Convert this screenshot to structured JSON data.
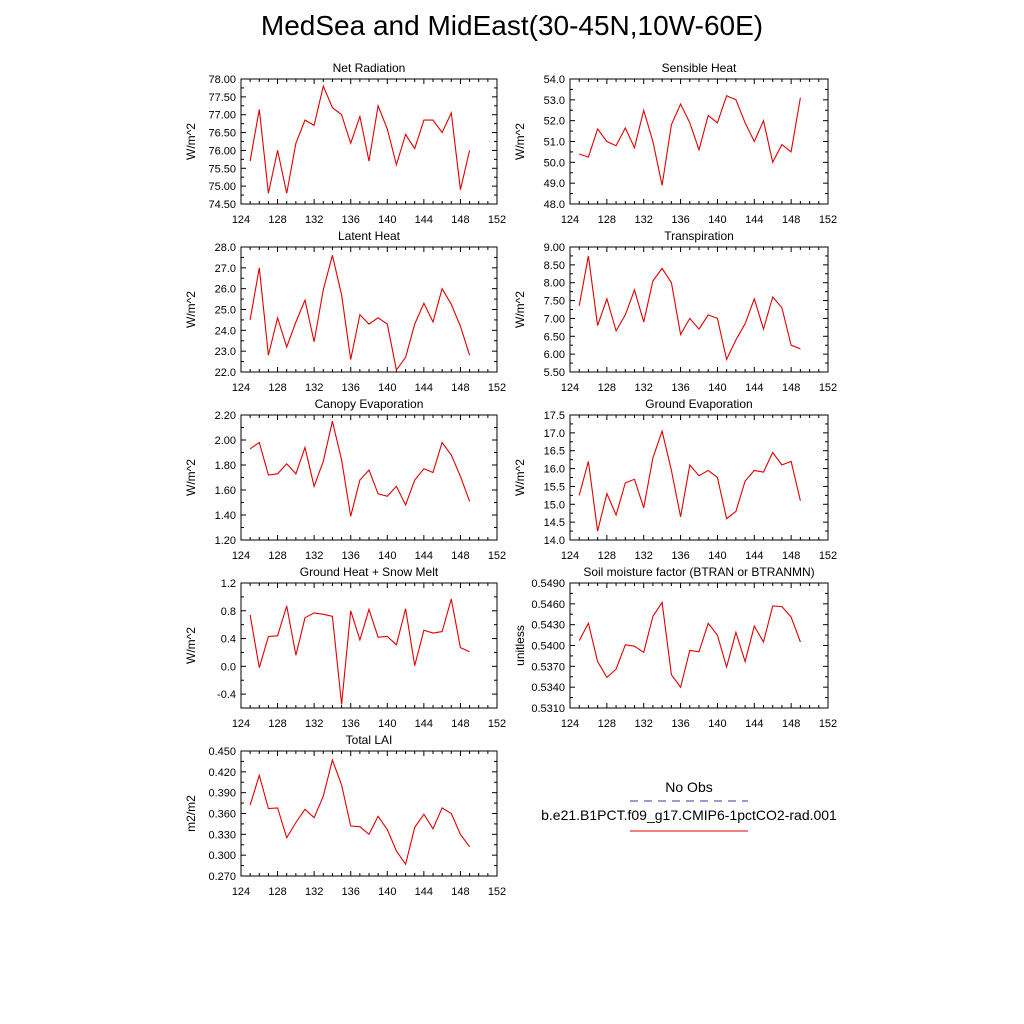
{
  "title": "MedSea and MidEast(30-45N,10W-60E)",
  "legend": {
    "obs_label": "No Obs",
    "obs_color": "#3a3aa0",
    "model_label": "b.e21.B1PCT.f09_g17.CMIP6-1pctCO2-rad.001",
    "model_color": "#e00000"
  },
  "chart_data": [
    {
      "type": "line",
      "title": "Net Radiation",
      "ylabel": "W/m^2",
      "xlim": [
        124,
        152
      ],
      "ylim": [
        74.5,
        78.0
      ],
      "xticks": [
        "124",
        "128",
        "132",
        "136",
        "140",
        "144",
        "148",
        "152"
      ],
      "yticks": [
        "74.50",
        "75.00",
        "75.50",
        "76.00",
        "76.50",
        "77.00",
        "77.50",
        "78.00"
      ],
      "x": [
        125,
        126,
        127,
        128,
        129,
        130,
        131,
        132,
        133,
        134,
        135,
        136,
        137,
        138,
        139,
        140,
        141,
        142,
        143,
        144,
        145,
        146,
        147,
        148,
        149
      ],
      "series": [
        {
          "values": [
            75.7,
            77.15,
            74.8,
            76.0,
            74.8,
            76.2,
            76.85,
            76.7,
            77.8,
            77.2,
            77.0,
            76.2,
            76.95,
            75.7,
            77.25,
            76.6,
            75.6,
            76.45,
            76.05,
            76.85,
            76.85,
            76.5,
            77.05,
            74.9,
            76.0
          ]
        }
      ]
    },
    {
      "type": "line",
      "title": "Sensible Heat",
      "ylabel": "W/m^2",
      "xlim": [
        124,
        152
      ],
      "ylim": [
        48.0,
        54.0
      ],
      "xticks": [
        "124",
        "128",
        "132",
        "136",
        "140",
        "144",
        "148",
        "152"
      ],
      "yticks": [
        "48.0",
        "49.0",
        "50.0",
        "51.0",
        "52.0",
        "53.0",
        "54.0"
      ],
      "x": [
        125,
        126,
        127,
        128,
        129,
        130,
        131,
        132,
        133,
        134,
        135,
        136,
        137,
        138,
        139,
        140,
        141,
        142,
        143,
        144,
        145,
        146,
        147,
        148,
        149
      ],
      "series": [
        {
          "values": [
            50.4,
            50.25,
            51.6,
            51.0,
            50.8,
            51.65,
            50.7,
            52.5,
            51.0,
            48.9,
            51.8,
            52.8,
            51.9,
            50.6,
            52.25,
            51.9,
            53.2,
            53.0,
            51.9,
            51.0,
            52.0,
            50.0,
            50.85,
            50.5,
            53.1
          ]
        }
      ]
    },
    {
      "type": "line",
      "title": "Latent Heat",
      "ylabel": "W/m^2",
      "xlim": [
        124,
        152
      ],
      "ylim": [
        22.0,
        28.0
      ],
      "xticks": [
        "124",
        "128",
        "132",
        "136",
        "140",
        "144",
        "148",
        "152"
      ],
      "yticks": [
        "22.0",
        "23.0",
        "24.0",
        "25.0",
        "26.0",
        "27.0",
        "28.0"
      ],
      "x": [
        125,
        126,
        127,
        128,
        129,
        130,
        131,
        132,
        133,
        134,
        135,
        136,
        137,
        138,
        139,
        140,
        141,
        142,
        143,
        144,
        145,
        146,
        147,
        148,
        149
      ],
      "series": [
        {
          "values": [
            24.5,
            27.0,
            22.8,
            24.6,
            23.2,
            24.4,
            25.45,
            23.45,
            25.95,
            27.6,
            25.7,
            22.6,
            24.75,
            24.3,
            24.6,
            24.3,
            22.1,
            22.7,
            24.3,
            25.3,
            24.4,
            26.0,
            25.25,
            24.2,
            22.8
          ]
        }
      ]
    },
    {
      "type": "line",
      "title": "Transpiration",
      "ylabel": "W/m^2",
      "xlim": [
        124,
        152
      ],
      "ylim": [
        5.5,
        9.0
      ],
      "xticks": [
        "124",
        "128",
        "132",
        "136",
        "140",
        "144",
        "148",
        "152"
      ],
      "yticks": [
        "5.50",
        "6.00",
        "6.50",
        "7.00",
        "7.50",
        "8.00",
        "8.50",
        "9.00"
      ],
      "x": [
        125,
        126,
        127,
        128,
        129,
        130,
        131,
        132,
        133,
        134,
        135,
        136,
        137,
        138,
        139,
        140,
        141,
        142,
        143,
        144,
        145,
        146,
        147,
        148,
        149
      ],
      "series": [
        {
          "values": [
            7.35,
            8.75,
            6.8,
            7.55,
            6.65,
            7.1,
            7.8,
            6.9,
            8.05,
            8.4,
            8.0,
            6.55,
            7.0,
            6.7,
            7.1,
            7.0,
            5.85,
            6.4,
            6.85,
            7.55,
            6.7,
            7.6,
            7.3,
            6.25,
            6.15
          ]
        }
      ]
    },
    {
      "type": "line",
      "title": "Canopy Evaporation",
      "ylabel": "W/m^2",
      "xlim": [
        124,
        152
      ],
      "ylim": [
        1.2,
        2.2
      ],
      "xticks": [
        "124",
        "128",
        "132",
        "136",
        "140",
        "144",
        "148",
        "152"
      ],
      "yticks": [
        "1.20",
        "1.40",
        "1.60",
        "1.80",
        "2.00",
        "2.20"
      ],
      "x": [
        125,
        126,
        127,
        128,
        129,
        130,
        131,
        132,
        133,
        134,
        135,
        136,
        137,
        138,
        139,
        140,
        141,
        142,
        143,
        144,
        145,
        146,
        147,
        148,
        149
      ],
      "series": [
        {
          "values": [
            1.93,
            1.98,
            1.72,
            1.73,
            1.81,
            1.73,
            1.94,
            1.63,
            1.83,
            2.15,
            1.84,
            1.39,
            1.68,
            1.76,
            1.57,
            1.55,
            1.63,
            1.48,
            1.68,
            1.77,
            1.74,
            1.98,
            1.88,
            1.71,
            1.51
          ]
        }
      ]
    },
    {
      "type": "line",
      "title": "Ground Evaporation",
      "ylabel": "W/m^2",
      "xlim": [
        124,
        152
      ],
      "ylim": [
        14.0,
        17.5
      ],
      "xticks": [
        "124",
        "128",
        "132",
        "136",
        "140",
        "144",
        "148",
        "152"
      ],
      "yticks": [
        "14.0",
        "14.5",
        "15.0",
        "15.5",
        "16.0",
        "16.5",
        "17.0",
        "17.5"
      ],
      "x": [
        125,
        126,
        127,
        128,
        129,
        130,
        131,
        132,
        133,
        134,
        135,
        136,
        137,
        138,
        139,
        140,
        141,
        142,
        143,
        144,
        145,
        146,
        147,
        148,
        149
      ],
      "series": [
        {
          "values": [
            15.25,
            16.2,
            14.25,
            15.3,
            14.7,
            15.6,
            15.7,
            14.9,
            16.3,
            17.05,
            15.95,
            14.65,
            16.1,
            15.8,
            15.95,
            15.75,
            14.6,
            14.8,
            15.65,
            15.95,
            15.9,
            16.45,
            16.1,
            16.2,
            15.1
          ]
        }
      ]
    },
    {
      "type": "line",
      "title": "Ground Heat + Snow Melt",
      "ylabel": "W/m^2",
      "xlim": [
        124,
        152
      ],
      "ylim": [
        -0.6,
        1.2
      ],
      "xticks": [
        "124",
        "128",
        "132",
        "136",
        "140",
        "144",
        "148",
        "152"
      ],
      "yticks": [
        "-0.4",
        "0.0",
        "0.4",
        "0.8",
        "1.2"
      ],
      "ytick_values": [
        -0.4,
        0.0,
        0.4,
        0.8,
        1.2
      ],
      "x": [
        125,
        126,
        127,
        128,
        129,
        130,
        131,
        132,
        133,
        134,
        135,
        136,
        137,
        138,
        139,
        140,
        141,
        142,
        143,
        144,
        145,
        146,
        147,
        148,
        149
      ],
      "series": [
        {
          "values": [
            0.74,
            -0.02,
            0.43,
            0.44,
            0.87,
            0.16,
            0.7,
            0.77,
            0.75,
            0.72,
            -0.55,
            0.8,
            0.38,
            0.82,
            0.42,
            0.43,
            0.31,
            0.83,
            0.01,
            0.52,
            0.48,
            0.5,
            0.97,
            0.27,
            0.21
          ]
        }
      ]
    },
    {
      "type": "line",
      "title": "Soil moisture factor (BTRAN or BTRANMN)",
      "ylabel": "unitless",
      "xlim": [
        124,
        152
      ],
      "ylim": [
        0.531,
        0.549
      ],
      "xticks": [
        "124",
        "128",
        "132",
        "136",
        "140",
        "144",
        "148",
        "152"
      ],
      "yticks": [
        "0.5310",
        "0.5340",
        "0.5370",
        "0.5400",
        "0.5430",
        "0.5460",
        "0.5490"
      ],
      "x": [
        125,
        126,
        127,
        128,
        129,
        130,
        131,
        132,
        133,
        134,
        135,
        136,
        137,
        138,
        139,
        140,
        141,
        142,
        143,
        144,
        145,
        146,
        147,
        148,
        149
      ],
      "series": [
        {
          "values": [
            0.5407,
            0.5432,
            0.5377,
            0.5354,
            0.5366,
            0.5401,
            0.5399,
            0.539,
            0.5442,
            0.5462,
            0.5358,
            0.534,
            0.5393,
            0.5391,
            0.5432,
            0.5415,
            0.5369,
            0.5419,
            0.5377,
            0.5428,
            0.5405,
            0.5457,
            0.5456,
            0.5441,
            0.5405
          ]
        }
      ]
    },
    {
      "type": "line",
      "title": "Total LAI",
      "ylabel": "m2/m2",
      "xlim": [
        124,
        152
      ],
      "ylim": [
        0.27,
        0.45
      ],
      "xticks": [
        "124",
        "128",
        "132",
        "136",
        "140",
        "144",
        "148",
        "152"
      ],
      "yticks": [
        "0.270",
        "0.300",
        "0.330",
        "0.360",
        "0.390",
        "0.420",
        "0.450"
      ],
      "x": [
        125,
        126,
        127,
        128,
        129,
        130,
        131,
        132,
        133,
        134,
        135,
        136,
        137,
        138,
        139,
        140,
        141,
        142,
        143,
        144,
        145,
        146,
        147,
        148,
        149
      ],
      "series": [
        {
          "values": [
            0.372,
            0.415,
            0.367,
            0.368,
            0.325,
            0.347,
            0.366,
            0.354,
            0.385,
            0.437,
            0.401,
            0.342,
            0.341,
            0.33,
            0.356,
            0.337,
            0.306,
            0.287,
            0.34,
            0.359,
            0.338,
            0.368,
            0.36,
            0.33,
            0.312
          ]
        }
      ]
    }
  ]
}
